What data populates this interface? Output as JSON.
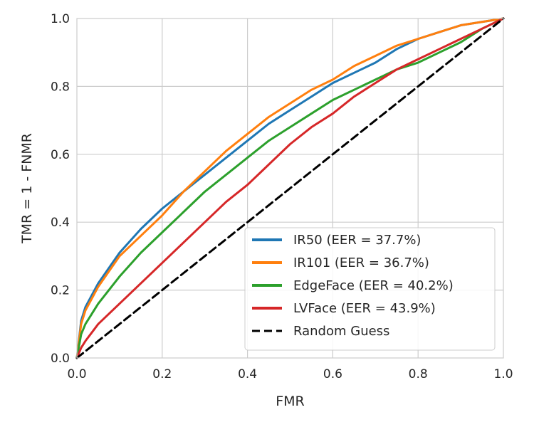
{
  "chart_data": {
    "type": "line",
    "title": "",
    "xlabel": "FMR",
    "ylabel": "TMR = 1 - FNMR",
    "xlim": [
      0,
      1
    ],
    "ylim": [
      0,
      1
    ],
    "xticks": [
      "0.0",
      "0.2",
      "0.4",
      "0.6",
      "0.8",
      "1.0"
    ],
    "yticks": [
      "0.0",
      "0.2",
      "0.4",
      "0.6",
      "0.8",
      "1.0"
    ],
    "grid": true,
    "legend_position": "bottom-right",
    "series": [
      {
        "name": "IR50 (EER = 37.7%)",
        "color": "#1f77b4",
        "x": [
          0,
          0.01,
          0.02,
          0.05,
          0.1,
          0.15,
          0.2,
          0.25,
          0.3,
          0.35,
          0.4,
          0.45,
          0.5,
          0.55,
          0.6,
          0.65,
          0.7,
          0.75,
          0.8,
          0.85,
          0.9,
          0.95,
          1.0
        ],
        "y": [
          0,
          0.11,
          0.15,
          0.22,
          0.31,
          0.38,
          0.44,
          0.49,
          0.54,
          0.59,
          0.64,
          0.69,
          0.73,
          0.77,
          0.81,
          0.84,
          0.87,
          0.91,
          0.94,
          0.96,
          0.98,
          0.99,
          1.0
        ]
      },
      {
        "name": "IR101 (EER = 36.7%)",
        "color": "#ff7f0e",
        "x": [
          0,
          0.01,
          0.02,
          0.05,
          0.1,
          0.15,
          0.2,
          0.25,
          0.3,
          0.35,
          0.4,
          0.45,
          0.5,
          0.55,
          0.6,
          0.65,
          0.7,
          0.75,
          0.8,
          0.85,
          0.9,
          0.95,
          1.0
        ],
        "y": [
          0,
          0.1,
          0.14,
          0.21,
          0.3,
          0.36,
          0.42,
          0.49,
          0.55,
          0.61,
          0.66,
          0.71,
          0.75,
          0.79,
          0.82,
          0.86,
          0.89,
          0.92,
          0.94,
          0.96,
          0.98,
          0.99,
          1.0
        ]
      },
      {
        "name": "EdgeFace (EER = 40.2%)",
        "color": "#2ca02c",
        "x": [
          0,
          0.01,
          0.02,
          0.05,
          0.1,
          0.15,
          0.2,
          0.25,
          0.3,
          0.35,
          0.4,
          0.45,
          0.5,
          0.55,
          0.6,
          0.65,
          0.7,
          0.75,
          0.8,
          0.85,
          0.9,
          0.95,
          1.0
        ],
        "y": [
          0,
          0.07,
          0.1,
          0.16,
          0.24,
          0.31,
          0.37,
          0.43,
          0.49,
          0.54,
          0.59,
          0.64,
          0.68,
          0.72,
          0.76,
          0.79,
          0.82,
          0.85,
          0.87,
          0.9,
          0.93,
          0.97,
          1.0
        ]
      },
      {
        "name": "LVFace (EER = 43.9%)",
        "color": "#d62728",
        "x": [
          0,
          0.01,
          0.02,
          0.05,
          0.1,
          0.15,
          0.2,
          0.25,
          0.3,
          0.35,
          0.4,
          0.45,
          0.5,
          0.55,
          0.6,
          0.65,
          0.7,
          0.75,
          0.8,
          0.85,
          0.9,
          0.95,
          1.0
        ],
        "y": [
          0,
          0.03,
          0.05,
          0.1,
          0.16,
          0.22,
          0.28,
          0.34,
          0.4,
          0.46,
          0.51,
          0.57,
          0.63,
          0.68,
          0.72,
          0.77,
          0.81,
          0.85,
          0.88,
          0.91,
          0.94,
          0.97,
          1.0
        ]
      },
      {
        "name": "Random Guess",
        "color": "#000000",
        "dashed": true,
        "x": [
          0,
          1
        ],
        "y": [
          0,
          1
        ]
      }
    ]
  }
}
